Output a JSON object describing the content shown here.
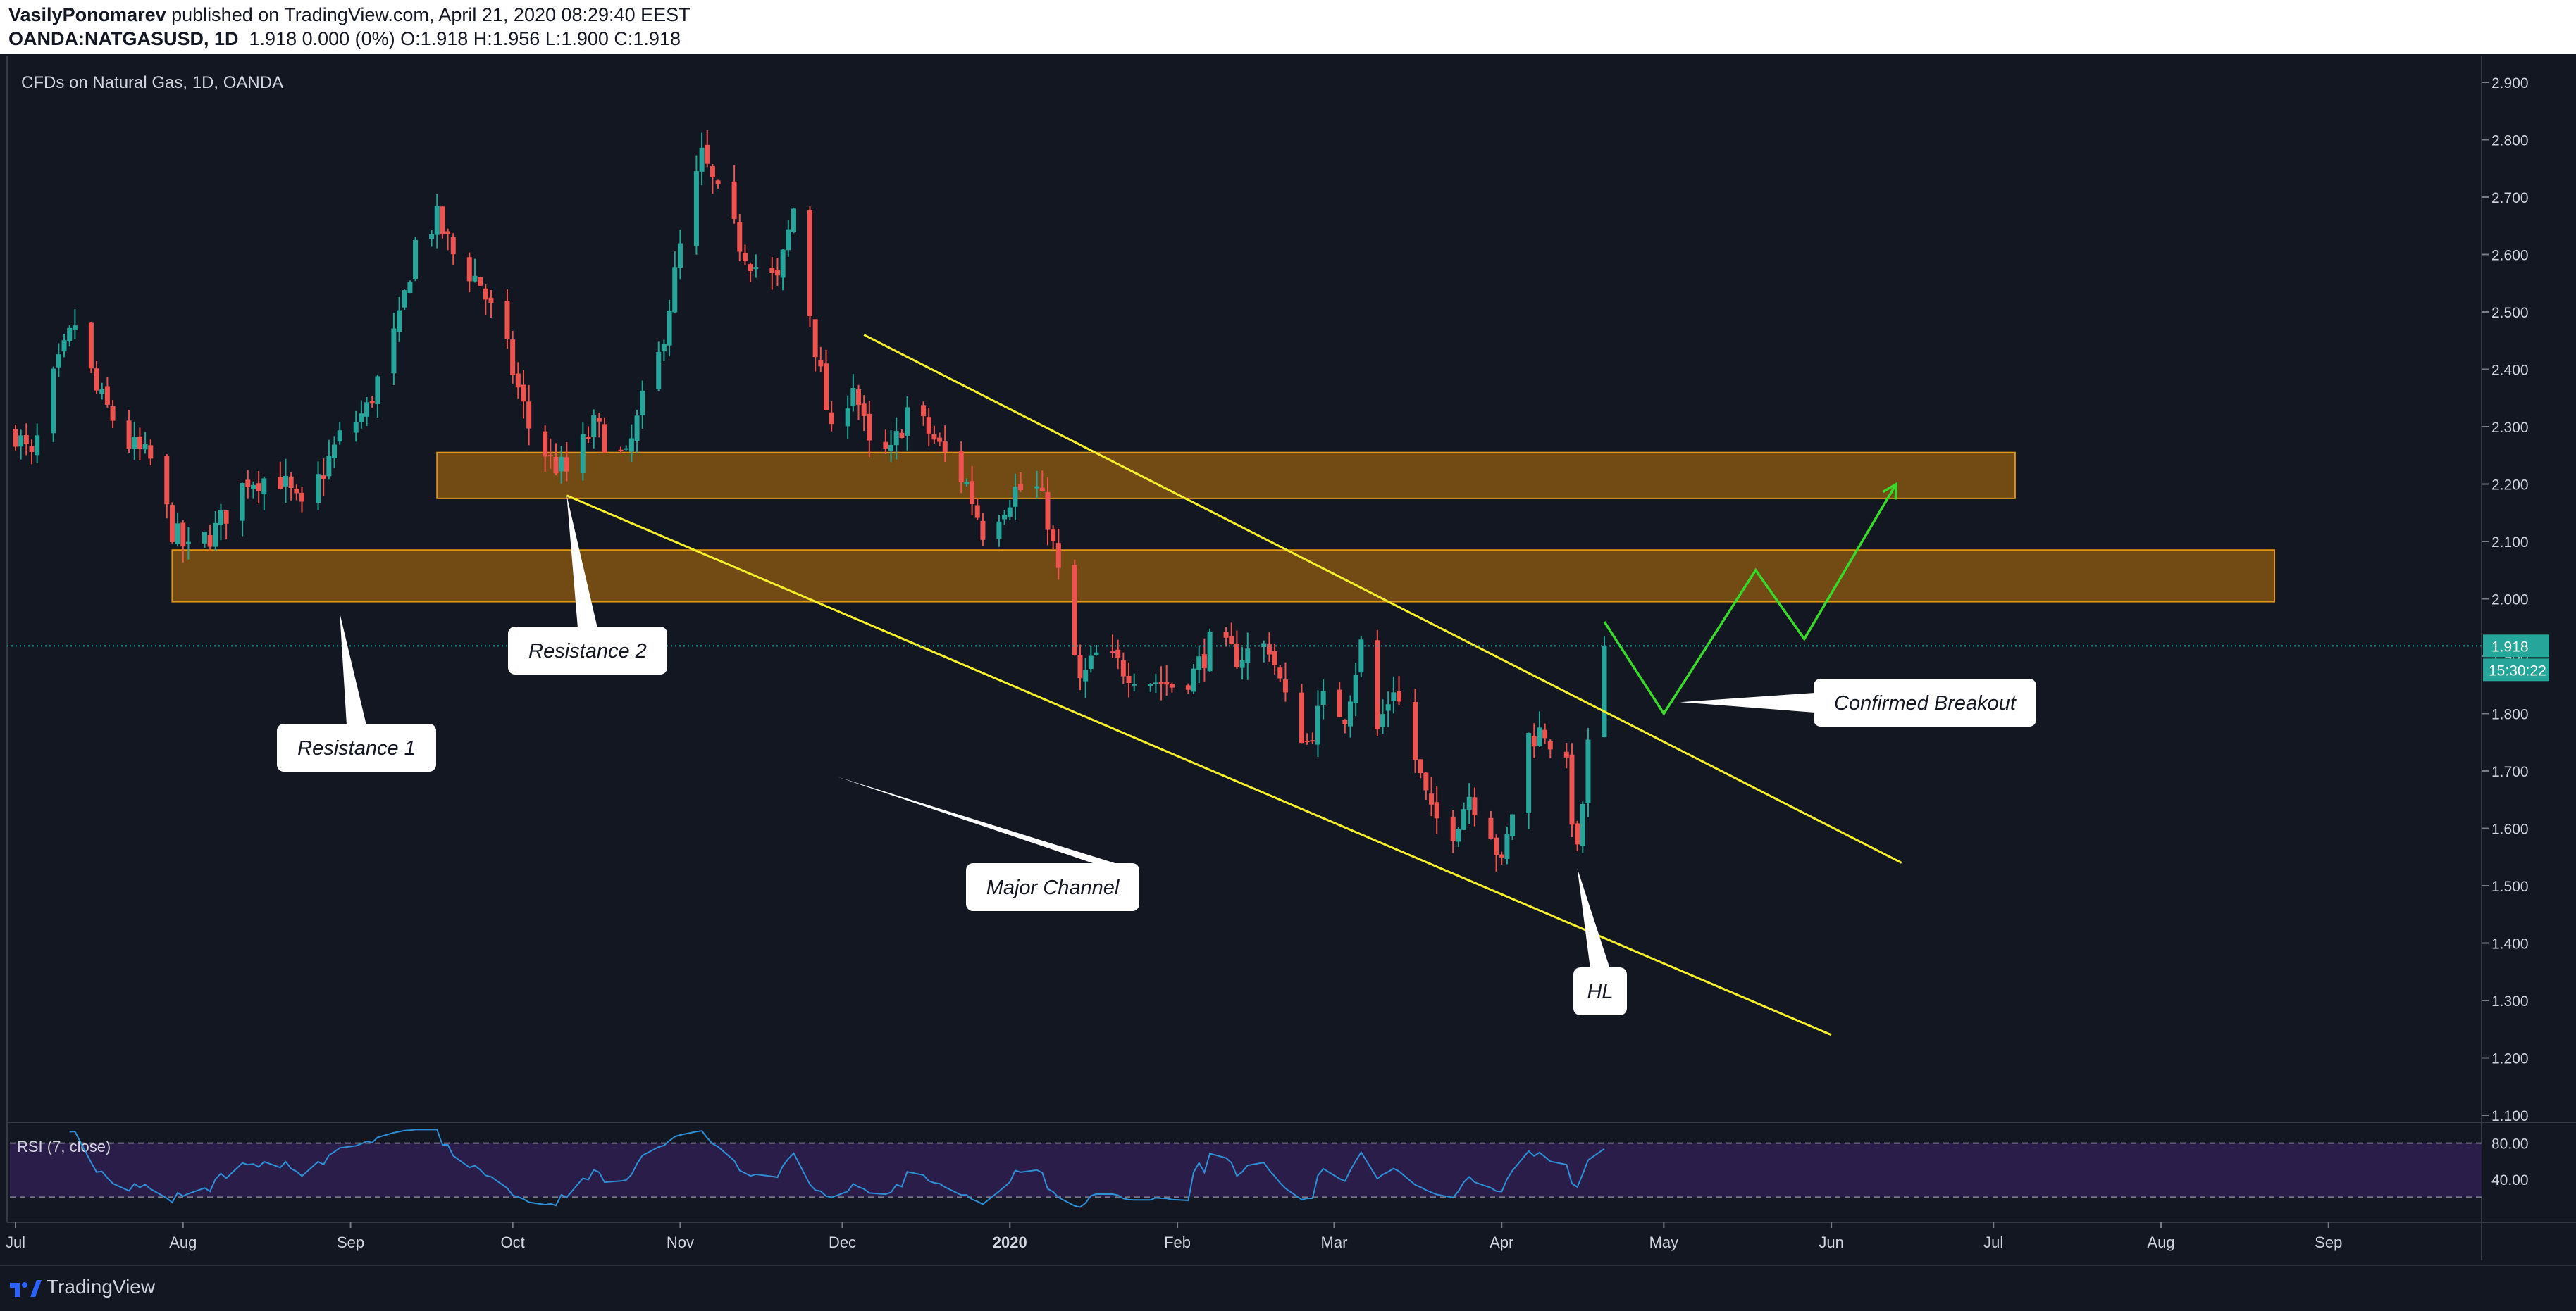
{
  "header": {
    "author": "VasilyPonomarev",
    "published_text": " published on TradingView.com, April 21, 2020 08:29:40 EEST",
    "symbol": "OANDA:NATGASUSD, 1D",
    "ohlc_text": "1.918  0.000 (0%)  O:1.918  H:1.956  L:1.900  C:1.918"
  },
  "chart": {
    "title": "CFDs on Natural Gas, 1D, OANDA",
    "last_price_label": "1.918",
    "countdown_label": "15:30:22",
    "rsi_label": "RSI (7, close)"
  },
  "footer": {
    "brand": "TradingView"
  },
  "colors": {
    "background": "#131722",
    "up": "#26a69a",
    "down": "#ef5350",
    "zone_fill": "#7a4f14",
    "zone_border": "#e09515",
    "channel": "#f6ef2c",
    "projection": "#38d92a",
    "rsi_line": "#2f8fd6",
    "rsi_band": "#2a1d49",
    "last_price": "#26a69a"
  },
  "chart_data": {
    "type": "candlestick",
    "instrument": "OANDA:NATGASUSD",
    "timeframe": "1D",
    "ylim": [
      1.1,
      2.9
    ],
    "y_ticks": [
      "2.900",
      "2.800",
      "2.700",
      "2.600",
      "2.500",
      "2.400",
      "2.300",
      "2.200",
      "2.100",
      "2.000",
      "1.900",
      "1.800",
      "1.700",
      "1.600",
      "1.500",
      "1.400",
      "1.300",
      "1.200",
      "1.100"
    ],
    "x_ticks": [
      "Jul",
      "Aug",
      "Sep",
      "Oct",
      "Nov",
      "Dec",
      "2020",
      "Feb",
      "Mar",
      "Apr",
      "May",
      "Jun",
      "Jul",
      "Aug",
      "Sep"
    ],
    "last_price": 1.918,
    "price_path": [
      [
        "2019-07-01",
        2.29
      ],
      [
        "2019-07-04",
        2.24
      ],
      [
        "2019-07-08",
        2.38
      ],
      [
        "2019-07-12",
        2.48
      ],
      [
        "2019-07-16",
        2.36
      ],
      [
        "2019-07-22",
        2.27
      ],
      [
        "2019-07-26",
        2.24
      ],
      [
        "2019-07-30",
        2.12
      ],
      [
        "2019-08-02",
        2.08
      ],
      [
        "2019-08-07",
        2.12
      ],
      [
        "2019-08-13",
        2.21
      ],
      [
        "2019-08-19",
        2.21
      ],
      [
        "2019-08-23",
        2.15
      ],
      [
        "2019-08-30",
        2.28
      ],
      [
        "2019-09-04",
        2.33
      ],
      [
        "2019-09-10",
        2.48
      ],
      [
        "2019-09-13",
        2.62
      ],
      [
        "2019-09-17",
        2.66
      ],
      [
        "2019-09-20",
        2.6
      ],
      [
        "2019-09-25",
        2.55
      ],
      [
        "2019-09-30",
        2.43
      ],
      [
        "2019-10-04",
        2.3
      ],
      [
        "2019-10-08",
        2.24
      ],
      [
        "2019-10-11",
        2.22
      ],
      [
        "2019-10-16",
        2.3
      ],
      [
        "2019-10-22",
        2.24
      ],
      [
        "2019-10-25",
        2.34
      ],
      [
        "2019-10-28",
        2.42
      ],
      [
        "2019-11-01",
        2.61
      ],
      [
        "2019-11-05",
        2.77
      ],
      [
        "2019-11-08",
        2.7
      ],
      [
        "2019-11-12",
        2.62
      ],
      [
        "2019-11-15",
        2.58
      ],
      [
        "2019-11-19",
        2.55
      ],
      [
        "2019-11-22",
        2.68
      ],
      [
        "2019-11-26",
        2.44
      ],
      [
        "2019-11-29",
        2.28
      ],
      [
        "2019-12-03",
        2.38
      ],
      [
        "2019-12-06",
        2.26
      ],
      [
        "2019-12-10",
        2.25
      ],
      [
        "2019-12-13",
        2.33
      ],
      [
        "2019-12-17",
        2.29
      ],
      [
        "2019-12-20",
        2.25
      ],
      [
        "2019-12-24",
        2.2
      ],
      [
        "2019-12-27",
        2.12
      ],
      [
        "2020-01-02",
        2.19
      ],
      [
        "2020-01-06",
        2.19
      ],
      [
        "2020-01-08",
        2.14
      ],
      [
        "2020-01-10",
        2.04
      ],
      [
        "2020-01-14",
        1.85
      ],
      [
        "2020-01-17",
        1.9
      ],
      [
        "2020-01-22",
        1.88
      ],
      [
        "2020-01-27",
        1.86
      ],
      [
        "2020-01-31",
        1.85
      ],
      [
        "2020-02-04",
        1.87
      ],
      [
        "2020-02-07",
        1.92
      ],
      [
        "2020-02-12",
        1.9
      ],
      [
        "2020-02-18",
        1.92
      ],
      [
        "2020-02-21",
        1.82
      ],
      [
        "2020-02-25",
        1.75
      ],
      [
        "2020-02-28",
        1.82
      ],
      [
        "2020-03-03",
        1.8
      ],
      [
        "2020-03-06",
        1.92
      ],
      [
        "2020-03-09",
        1.77
      ],
      [
        "2020-03-12",
        1.85
      ],
      [
        "2020-03-16",
        1.72
      ],
      [
        "2020-03-19",
        1.62
      ],
      [
        "2020-03-23",
        1.6
      ],
      [
        "2020-03-26",
        1.66
      ],
      [
        "2020-03-30",
        1.6
      ],
      [
        "2020-04-01",
        1.53
      ],
      [
        "2020-04-03",
        1.63
      ],
      [
        "2020-04-06",
        1.76
      ],
      [
        "2020-04-09",
        1.77
      ],
      [
        "2020-04-13",
        1.7
      ],
      [
        "2020-04-15",
        1.55
      ],
      [
        "2020-04-17",
        1.74
      ],
      [
        "2020-04-20",
        1.918
      ]
    ],
    "rsi": {
      "label": "RSI (7, close)",
      "levels": [
        "80.00",
        "40.00"
      ],
      "band": [
        20,
        80
      ]
    },
    "zones": [
      {
        "low": 2.175,
        "high": 2.255,
        "start": "2019-09-17",
        "end": "2020-07-05"
      },
      {
        "low": 1.995,
        "high": 2.085,
        "start": "2019-07-30",
        "end": "2020-08-22"
      }
    ],
    "channel_lines": [
      {
        "from": [
          "2019-10-11",
          2.18
        ],
        "to": [
          "2020-06-01",
          1.24
        ]
      },
      {
        "from": [
          "2019-12-05",
          2.46
        ],
        "to": [
          "2020-06-14",
          1.54
        ]
      }
    ],
    "projection_path": [
      [
        "2020-04-20",
        1.96
      ],
      [
        "2020-05-01",
        1.8
      ],
      [
        "2020-05-18",
        2.05
      ],
      [
        "2020-05-27",
        1.93
      ],
      [
        "2020-06-13",
        2.2
      ]
    ],
    "annotations": [
      {
        "text": "Resistance 1",
        "anchor": [
          "2019-08-30",
          1.975
        ]
      },
      {
        "text": "Resistance 2",
        "anchor": [
          "2019-10-11",
          2.18
        ]
      },
      {
        "text": "Major Channel",
        "anchor": [
          "2019-11-30",
          1.69
        ]
      },
      {
        "text": "Confirmed Breakout",
        "anchor": [
          "2020-05-04",
          1.82
        ]
      },
      {
        "text": "HL",
        "anchor": [
          "2020-04-15",
          1.53
        ]
      }
    ]
  }
}
